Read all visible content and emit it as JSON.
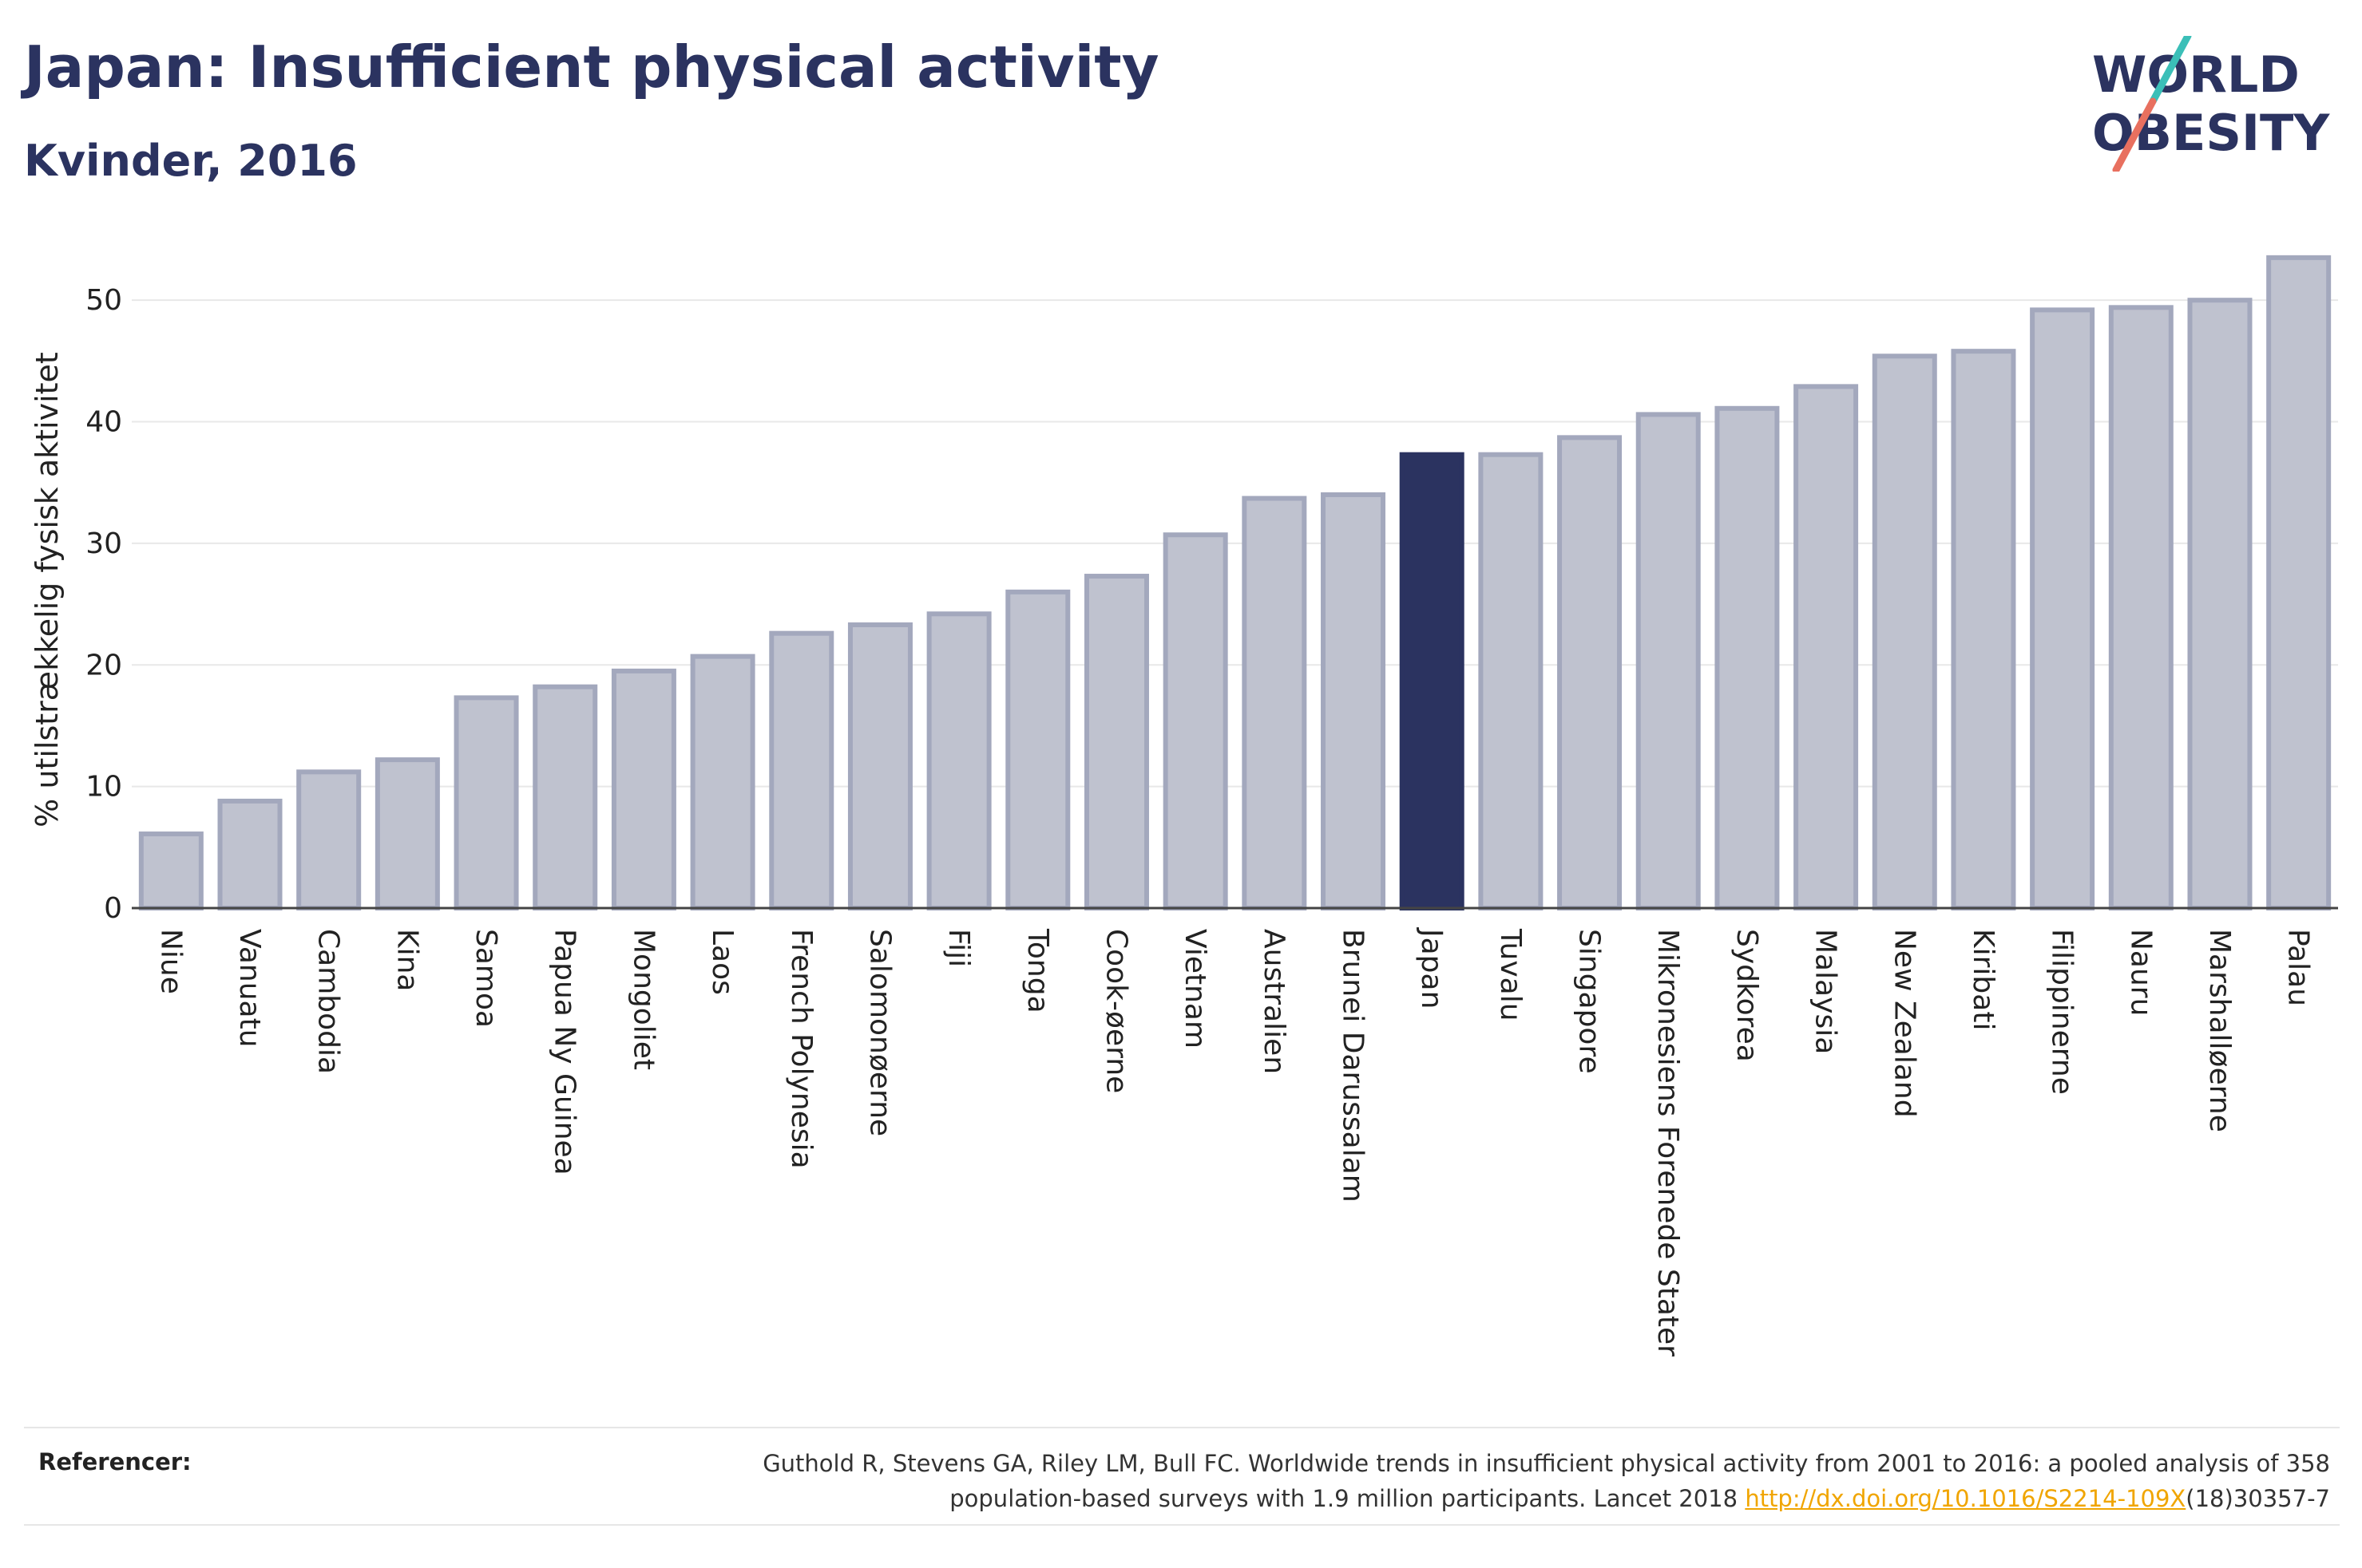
{
  "header": {
    "title": "Japan: Insufficient physical activity",
    "subtitle": "Kvinder, 2016"
  },
  "logo": {
    "line1": "WORLD",
    "line2": "OBESITY",
    "colors": {
      "text": "#2b3360",
      "slash_teal": "#3bbfb8",
      "slash_coral": "#e8705f"
    }
  },
  "chart_data": {
    "type": "bar",
    "title": "Japan: Insufficient physical activity",
    "subtitle": "Kvinder, 2016",
    "xlabel": "",
    "ylabel": "% utilstrækkelig fysisk aktivitet",
    "ylim": [
      0,
      55
    ],
    "yticks": [
      0,
      10,
      20,
      30,
      40,
      50
    ],
    "grid": true,
    "highlight": "Japan",
    "categories": [
      "Niue",
      "Vanuatu",
      "Cambodia",
      "Kina",
      "Samoa",
      "Papua Ny Guinea",
      "Mongoliet",
      "Laos",
      "French Polynesia",
      "Salomonøerne",
      "Fiji",
      "Tonga",
      "Cook-øerne",
      "Vietnam",
      "Australien",
      "Brunei Darussalam",
      "Japan",
      "Tuvalu",
      "Singapore",
      "Mikronesiens Forenede Stater",
      "Sydkorea",
      "Malaysia",
      "New Zealand",
      "Kiribati",
      "Filippinerne",
      "Nauru",
      "Marshalløerne",
      "Palau"
    ],
    "values": [
      6.1,
      8.8,
      11.2,
      12.2,
      17.3,
      18.2,
      19.5,
      20.7,
      22.6,
      23.3,
      24.2,
      26.0,
      27.3,
      30.7,
      33.7,
      34.0,
      37.3,
      37.3,
      38.7,
      40.6,
      41.1,
      42.9,
      45.4,
      45.8,
      49.2,
      49.4,
      50.0,
      53.5
    ],
    "colors": {
      "bar": "#bfc2cf",
      "bar_edge": "#a3a8bd",
      "highlight": "#2b3360",
      "grid": "#e8e8e8",
      "axis": "#444444"
    }
  },
  "references": {
    "label": "Referencer:",
    "line1": "Guthold R, Stevens GA, Riley LM, Bull FC. Worldwide trends in insufficient physical activity from 2001 to 2016: a pooled analysis of 358",
    "line2_prefix": "population-based surveys with 1.9 million participants. Lancet 2018 ",
    "link": "http://dx.doi.org/10.1016/S2214-109X",
    "line2_suffix": "(18)30357-7"
  }
}
